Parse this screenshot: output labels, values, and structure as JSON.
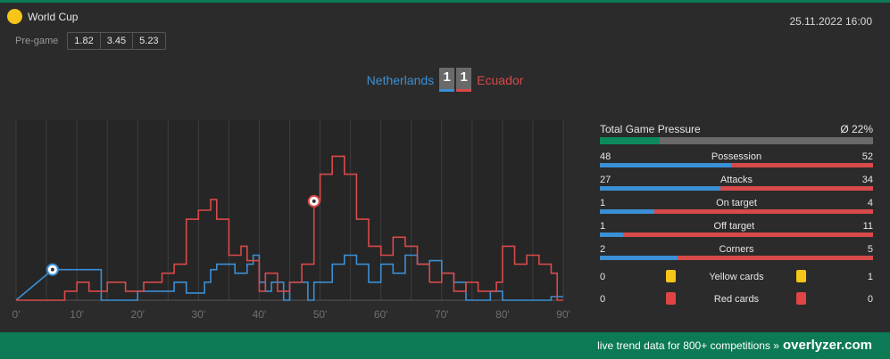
{
  "competition": {
    "name": "World Cup"
  },
  "datetime": "25.11.2022 16:00",
  "pregame": {
    "label": "Pre-game",
    "odds": [
      "1.82",
      "3.45",
      "5.23"
    ]
  },
  "match": {
    "home": "Netherlands",
    "away": "Ecuador",
    "home_score": "1",
    "away_score": "1"
  },
  "colors": {
    "home": "#3b8fd4",
    "away": "#d84a4a",
    "brand": "#0c7a55",
    "yellow": "#f5c518"
  },
  "stats": {
    "total_game_pressure": {
      "label": "Total Game Pressure",
      "value": "Ø 22%",
      "pct": 22
    },
    "rows": [
      {
        "label": "Possession",
        "home": "48",
        "away": "52"
      },
      {
        "label": "Attacks",
        "home": "27",
        "away": "34"
      },
      {
        "label": "On target",
        "home": "1",
        "away": "4"
      },
      {
        "label": "Off target",
        "home": "1",
        "away": "11"
      },
      {
        "label": "Corners",
        "home": "2",
        "away": "5"
      }
    ],
    "cards": [
      {
        "label": "Yellow cards",
        "home": "0",
        "away": "1",
        "icon": "yellow-card-icon"
      },
      {
        "label": "Red cards",
        "home": "0",
        "away": "0",
        "icon": "red-card-icon"
      }
    ]
  },
  "footer": {
    "text": "live trend data for 800+ competitions »",
    "brand": "overlyzer.com"
  },
  "chart_data": {
    "type": "line",
    "xlabel": "",
    "ylabel": "",
    "x_ticks": [
      "0'",
      "10'",
      "20'",
      "30'",
      "40'",
      "50'",
      "60'",
      "70'",
      "80'",
      "90'"
    ],
    "xlim": [
      0,
      90
    ],
    "ylim": [
      0,
      100
    ],
    "series": [
      {
        "name": "Netherlands",
        "points": [
          [
            0,
            0
          ],
          [
            6,
            17
          ],
          [
            14,
            17
          ],
          [
            14,
            0
          ],
          [
            20,
            0
          ],
          [
            20,
            5
          ],
          [
            23,
            5
          ],
          [
            26,
            5
          ],
          [
            26,
            10
          ],
          [
            28,
            10
          ],
          [
            28,
            4
          ],
          [
            31,
            4
          ],
          [
            31,
            10
          ],
          [
            32,
            10
          ],
          [
            32,
            17
          ],
          [
            33,
            17
          ],
          [
            33,
            20
          ],
          [
            36,
            20
          ],
          [
            36,
            15
          ],
          [
            38,
            15
          ],
          [
            38,
            20
          ],
          [
            39,
            20
          ],
          [
            39,
            25
          ],
          [
            40,
            25
          ],
          [
            40,
            10
          ],
          [
            41,
            10
          ],
          [
            41,
            5
          ],
          [
            42,
            5
          ],
          [
            42,
            10
          ],
          [
            44,
            10
          ],
          [
            44,
            0
          ],
          [
            45,
            0
          ],
          [
            45,
            10
          ],
          [
            48,
            10
          ],
          [
            48,
            0
          ],
          [
            49,
            0
          ],
          [
            49,
            10
          ],
          [
            52,
            10
          ],
          [
            52,
            20
          ],
          [
            54,
            20
          ],
          [
            54,
            25
          ],
          [
            56,
            25
          ],
          [
            56,
            20
          ],
          [
            58,
            20
          ],
          [
            58,
            10
          ],
          [
            60,
            10
          ],
          [
            60,
            20
          ],
          [
            62,
            20
          ],
          [
            62,
            15
          ],
          [
            64,
            15
          ],
          [
            64,
            25
          ],
          [
            66,
            25
          ],
          [
            66,
            20
          ],
          [
            68,
            20
          ],
          [
            68,
            22
          ],
          [
            70,
            22
          ],
          [
            70,
            15
          ],
          [
            72,
            15
          ],
          [
            72,
            10
          ],
          [
            74,
            10
          ],
          [
            74,
            0
          ],
          [
            78,
            0
          ],
          [
            78,
            5
          ],
          [
            80,
            5
          ],
          [
            80,
            0
          ],
          [
            86,
            0
          ],
          [
            86,
            0
          ],
          [
            88,
            0
          ],
          [
            88,
            2
          ],
          [
            90,
            2
          ]
        ]
      },
      {
        "name": "Ecuador",
        "points": [
          [
            0,
            0
          ],
          [
            8,
            0
          ],
          [
            8,
            5
          ],
          [
            10,
            5
          ],
          [
            10,
            10
          ],
          [
            12,
            10
          ],
          [
            12,
            5
          ],
          [
            15,
            5
          ],
          [
            15,
            10
          ],
          [
            18,
            10
          ],
          [
            18,
            5
          ],
          [
            21,
            5
          ],
          [
            21,
            10
          ],
          [
            24,
            10
          ],
          [
            24,
            15
          ],
          [
            26,
            15
          ],
          [
            26,
            20
          ],
          [
            28,
            20
          ],
          [
            28,
            45
          ],
          [
            30,
            45
          ],
          [
            30,
            50
          ],
          [
            32,
            50
          ],
          [
            32,
            56
          ],
          [
            33,
            56
          ],
          [
            33,
            45
          ],
          [
            35,
            45
          ],
          [
            35,
            25
          ],
          [
            37,
            25
          ],
          [
            37,
            30
          ],
          [
            38,
            30
          ],
          [
            38,
            22
          ],
          [
            40,
            22
          ],
          [
            40,
            5
          ],
          [
            41,
            5
          ],
          [
            41,
            15
          ],
          [
            43,
            15
          ],
          [
            43,
            5
          ],
          [
            45,
            5
          ],
          [
            45,
            10
          ],
          [
            47,
            10
          ],
          [
            47,
            20
          ],
          [
            49,
            20
          ],
          [
            49,
            55
          ],
          [
            50,
            55
          ],
          [
            50,
            70
          ],
          [
            52,
            70
          ],
          [
            52,
            80
          ],
          [
            54,
            80
          ],
          [
            54,
            70
          ],
          [
            56,
            70
          ],
          [
            56,
            45
          ],
          [
            58,
            45
          ],
          [
            58,
            30
          ],
          [
            60,
            30
          ],
          [
            60,
            25
          ],
          [
            62,
            25
          ],
          [
            62,
            35
          ],
          [
            64,
            35
          ],
          [
            64,
            30
          ],
          [
            66,
            30
          ],
          [
            66,
            20
          ],
          [
            68,
            20
          ],
          [
            68,
            10
          ],
          [
            70,
            10
          ],
          [
            70,
            15
          ],
          [
            72,
            15
          ],
          [
            72,
            5
          ],
          [
            74,
            5
          ],
          [
            74,
            10
          ],
          [
            76,
            10
          ],
          [
            76,
            5
          ],
          [
            79,
            5
          ],
          [
            79,
            10
          ],
          [
            80,
            10
          ],
          [
            80,
            30
          ],
          [
            82,
            30
          ],
          [
            82,
            20
          ],
          [
            84,
            20
          ],
          [
            84,
            25
          ],
          [
            86,
            25
          ],
          [
            86,
            20
          ],
          [
            88,
            20
          ],
          [
            88,
            15
          ],
          [
            89,
            15
          ],
          [
            89,
            0
          ],
          [
            90,
            0
          ]
        ]
      }
    ],
    "events": [
      {
        "team": "Netherlands",
        "minute": 6,
        "type": "goal"
      },
      {
        "team": "Ecuador",
        "minute": 49,
        "type": "goal"
      }
    ],
    "grid": true
  }
}
